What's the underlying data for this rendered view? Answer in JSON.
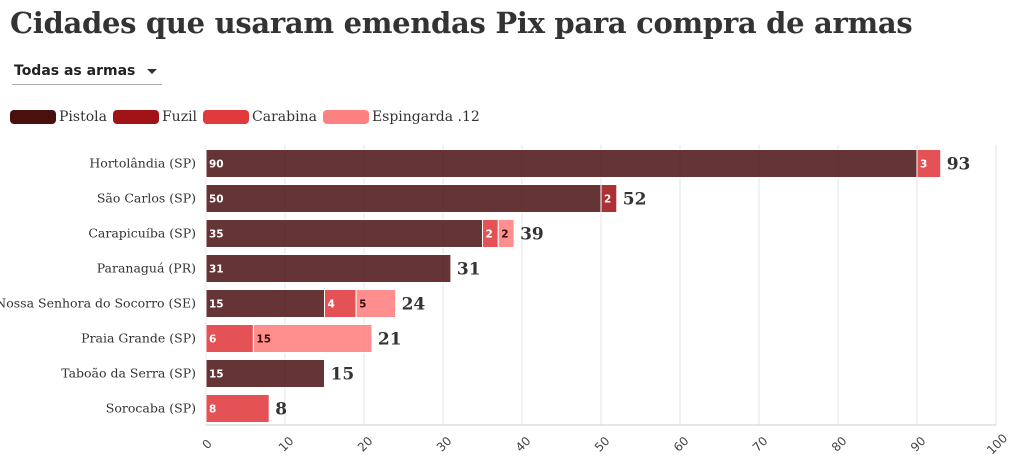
{
  "title": "Cidades que usaram emendas Pix para compra de armas",
  "filter": {
    "selected": "Todas as armas",
    "icon": "chevron-down-icon"
  },
  "chart_data": {
    "type": "bar",
    "orientation": "horizontal",
    "stacked": true,
    "categories": [
      "Hortolândia (SP)",
      "São Carlos (SP)",
      "Carapicuíba (SP)",
      "Paranaguá (PR)",
      "Nossa Senhora do Socorro (SE)",
      "Praia Grande (SP)",
      "Taboão da Serra (SP)",
      "Sorocaba (SP)"
    ],
    "series": [
      {
        "name": "Pistola",
        "color": "#4a1010",
        "values": [
          90,
          50,
          35,
          31,
          15,
          0,
          15,
          0
        ]
      },
      {
        "name": "Fuzil",
        "color": "#a01418",
        "values": [
          0,
          2,
          0,
          0,
          0,
          0,
          0,
          0
        ]
      },
      {
        "name": "Carabina",
        "color": "#e03a3e",
        "values": [
          3,
          0,
          2,
          0,
          4,
          6,
          0,
          8
        ]
      },
      {
        "name": "Espingarda .12",
        "color": "#ff8080",
        "values": [
          0,
          0,
          2,
          0,
          5,
          15,
          0,
          0
        ]
      }
    ],
    "totals": [
      93,
      52,
      39,
      31,
      24,
      21,
      15,
      8
    ],
    "xlim": [
      0,
      100
    ],
    "xticks": [
      0,
      10,
      20,
      30,
      40,
      50,
      60,
      70,
      80,
      90,
      100
    ],
    "xlabel": "",
    "ylabel": "",
    "grid": true,
    "legend_position": "top-left"
  }
}
